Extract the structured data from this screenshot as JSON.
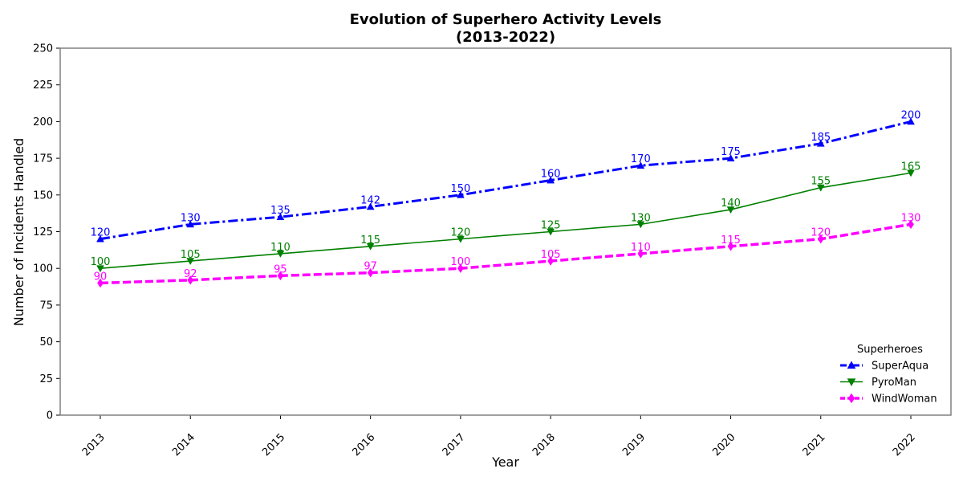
{
  "chart_data": {
    "type": "line",
    "title": "Evolution of Superhero Activity Levels",
    "subtitle": "(2013-2022)",
    "xlabel": "Year",
    "ylabel": "Number of Incidents Handled",
    "x": [
      "2013",
      "2014",
      "2015",
      "2016",
      "2017",
      "2018",
      "2019",
      "2020",
      "2021",
      "2022"
    ],
    "ylim": [
      0,
      250
    ],
    "yticks": [
      0,
      25,
      50,
      75,
      100,
      125,
      150,
      175,
      200,
      225,
      250
    ],
    "grid": false,
    "legend": {
      "title": "Superheroes",
      "placement": "lower-right"
    },
    "series": [
      {
        "name": "SuperAqua",
        "values": [
          120,
          130,
          135,
          142,
          150,
          160,
          170,
          175,
          185,
          200
        ],
        "color": "#0000ff",
        "line_style": "dash-dot",
        "marker": "triangle-up"
      },
      {
        "name": "PyroMan",
        "values": [
          100,
          105,
          110,
          115,
          120,
          125,
          130,
          140,
          155,
          165
        ],
        "color": "#008000",
        "line_style": "solid",
        "marker": "triangle-down"
      },
      {
        "name": "WindWoman",
        "values": [
          90,
          92,
          95,
          97,
          100,
          105,
          110,
          115,
          120,
          130
        ],
        "color": "#ff00ff",
        "line_style": "dashed",
        "marker": "diamond"
      }
    ]
  }
}
